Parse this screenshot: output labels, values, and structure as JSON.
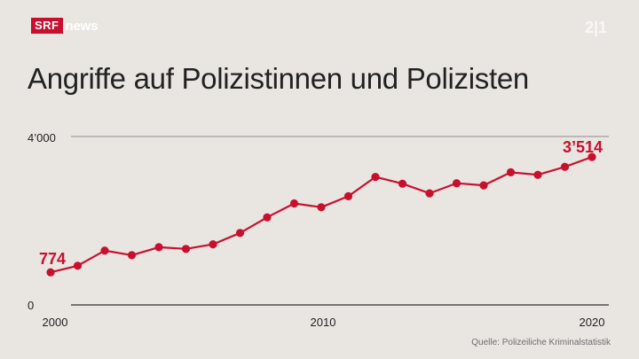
{
  "brand": {
    "box_label": "SRF",
    "news_label": "news",
    "channel_mark": "2|1"
  },
  "colors": {
    "background": "#e9e6e1",
    "accent": "#c8102e",
    "gridline": "#8a8a8a"
  },
  "chart_data": {
    "type": "line",
    "title": "Angriffe auf Polizistinnen und Polizisten",
    "xlabel": "",
    "ylabel": "",
    "x": [
      2000,
      2001,
      2002,
      2003,
      2004,
      2005,
      2006,
      2007,
      2008,
      2009,
      2010,
      2011,
      2012,
      2013,
      2014,
      2015,
      2016,
      2017,
      2018,
      2019,
      2020
    ],
    "series": [
      {
        "name": "",
        "values": [
          774,
          930,
          1290,
          1180,
          1370,
          1330,
          1440,
          1710,
          2080,
          2410,
          2320,
          2580,
          3040,
          2880,
          2650,
          2890,
          2840,
          3150,
          3090,
          3280,
          3514
        ]
      }
    ],
    "xlim": [
      2000,
      2020
    ],
    "ylim": [
      0,
      4000
    ],
    "x_ticks": [
      "2000",
      "2010",
      "2020"
    ],
    "y_ticks": [
      "0",
      "4’000"
    ],
    "data_labels": [
      {
        "x": 2000,
        "text": "774"
      },
      {
        "x": 2020,
        "text": "3’514"
      }
    ],
    "grid": "horizontal",
    "color": "#c8102e"
  },
  "footer": {
    "source": "Quelle: Polizeiliche Kriminalstatistik"
  }
}
